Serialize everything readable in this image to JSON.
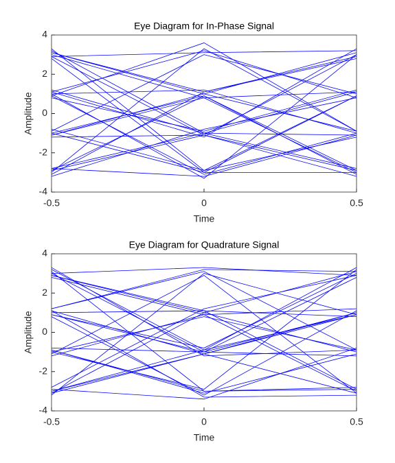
{
  "chart_data": [
    {
      "type": "line",
      "title": "Eye Diagram for In-Phase Signal",
      "xlabel": "Time",
      "ylabel": "Amplitude",
      "x": [
        -0.5,
        0,
        0.5
      ],
      "xlim": [
        -0.5,
        0.5
      ],
      "xticks": [
        -0.5,
        0,
        0.5
      ],
      "ylim": [
        -4,
        4
      ],
      "yticks": [
        -4,
        -2,
        0,
        2,
        4
      ],
      "color": "#0000ff",
      "grid": false,
      "series": [
        {
          "values": [
            3.1,
            1.0,
            -0.9
          ]
        },
        {
          "values": [
            1.1,
            3.2,
            0.8
          ]
        },
        {
          "values": [
            -2.9,
            -1.1,
            3.0
          ]
        },
        {
          "values": [
            -1.0,
            0.9,
            -3.1
          ]
        },
        {
          "values": [
            3.2,
            -1.0,
            1.1
          ]
        },
        {
          "values": [
            0.9,
            -3.1,
            -1.0
          ]
        },
        {
          "values": [
            -3.1,
            1.1,
            2.9
          ]
        },
        {
          "values": [
            -0.8,
            -2.9,
            0.9
          ]
        },
        {
          "values": [
            2.9,
            3.1,
            3.2
          ]
        },
        {
          "values": [
            1.2,
            -1.0,
            -2.8
          ]
        },
        {
          "values": [
            -2.8,
            -3.2,
            -1.1
          ]
        },
        {
          "values": [
            -1.1,
            1.0,
            3.1
          ]
        },
        {
          "values": [
            3.0,
            0.8,
            -3.0
          ]
        },
        {
          "values": [
            0.8,
            -0.9,
            1.2
          ]
        },
        {
          "values": [
            -3.0,
            3.3,
            -0.9
          ]
        },
        {
          "values": [
            -1.2,
            -1.1,
            -3.2
          ]
        },
        {
          "values": [
            2.8,
            -3.0,
            0.9
          ]
        },
        {
          "values": [
            1.0,
            1.2,
            -1.0
          ]
        },
        {
          "values": [
            -2.9,
            0.9,
            -2.9
          ]
        },
        {
          "values": [
            -0.9,
            3.0,
            1.0
          ]
        },
        {
          "values": [
            3.3,
            -2.9,
            -1.2
          ]
        },
        {
          "values": [
            1.1,
            -1.2,
            3.3
          ]
        },
        {
          "values": [
            -3.2,
            -0.8,
            0.8
          ]
        },
        {
          "values": [
            -1.0,
            -3.0,
            -3.0
          ]
        },
        {
          "values": [
            3.1,
            1.1,
            2.8
          ]
        },
        {
          "values": [
            0.9,
            3.6,
            -0.9
          ]
        },
        {
          "values": [
            -2.8,
            -1.0,
            -1.1
          ]
        },
        {
          "values": [
            -1.1,
            0.8,
            1.1
          ]
        },
        {
          "values": [
            2.9,
            -1.1,
            -2.9
          ]
        },
        {
          "values": [
            1.0,
            -3.3,
            3.0
          ]
        }
      ]
    },
    {
      "type": "line",
      "title": "Eye Diagram for Quadrature Signal",
      "xlabel": "Time",
      "ylabel": "Amplitude",
      "x": [
        -0.5,
        0,
        0.5
      ],
      "xlim": [
        -0.5,
        0.5
      ],
      "xticks": [
        -0.5,
        0,
        0.5
      ],
      "ylim": [
        -4,
        4
      ],
      "yticks": [
        -4,
        -2,
        0,
        2,
        4
      ],
      "color": "#0000ff",
      "grid": false,
      "series": [
        {
          "values": [
            -3.0,
            -1.1,
            1.0
          ]
        },
        {
          "values": [
            1.2,
            3.1,
            -0.9
          ]
        },
        {
          "values": [
            2.9,
            1.0,
            3.1
          ]
        },
        {
          "values": [
            -0.9,
            -3.0,
            -2.9
          ]
        },
        {
          "values": [
            3.2,
            -0.9,
            0.9
          ]
        },
        {
          "values": [
            0.8,
            -3.2,
            1.1
          ]
        },
        {
          "values": [
            -3.1,
            1.0,
            -1.0
          ]
        },
        {
          "values": [
            -1.0,
            -2.9,
            3.2
          ]
        },
        {
          "values": [
            3.0,
            3.3,
            2.9
          ]
        },
        {
          "values": [
            1.1,
            -1.1,
            -3.1
          ]
        },
        {
          "values": [
            -2.9,
            -3.4,
            -0.8
          ]
        },
        {
          "values": [
            -1.2,
            0.9,
            -3.0
          ]
        },
        {
          "values": [
            2.8,
            0.9,
            1.2
          ]
        },
        {
          "values": [
            0.9,
            -0.8,
            3.0
          ]
        },
        {
          "values": [
            -3.2,
            3.0,
            0.9
          ]
        },
        {
          "values": [
            -0.8,
            -1.0,
            -1.2
          ]
        },
        {
          "values": [
            3.1,
            -3.0,
            -2.8
          ]
        },
        {
          "values": [
            1.0,
            1.1,
            0.8
          ]
        },
        {
          "values": [
            -2.8,
            1.2,
            2.9
          ]
        },
        {
          "values": [
            -1.1,
            2.9,
            -3.1
          ]
        },
        {
          "values": [
            3.3,
            -1.2,
            -0.9
          ]
        },
        {
          "values": [
            0.9,
            -1.0,
            1.0
          ]
        },
        {
          "values": [
            -3.0,
            -0.9,
            3.3
          ]
        },
        {
          "values": [
            -0.9,
            -3.1,
            -1.1
          ]
        },
        {
          "values": [
            2.9,
            1.1,
            -2.9
          ]
        },
        {
          "values": [
            1.2,
            3.2,
            3.1
          ]
        },
        {
          "values": [
            -3.1,
            -1.1,
            0.9
          ]
        },
        {
          "values": [
            -1.0,
            0.8,
            -0.9
          ]
        },
        {
          "values": [
            3.0,
            -1.0,
            2.8
          ]
        },
        {
          "values": [
            1.1,
            -3.3,
            -3.2
          ]
        }
      ]
    }
  ]
}
